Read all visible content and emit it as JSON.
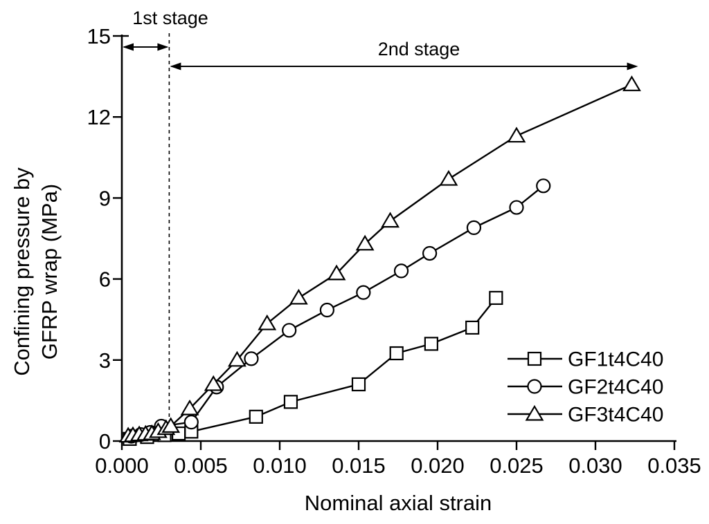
{
  "figure": {
    "background": "#ffffff",
    "ink_color": "#000000"
  },
  "chart_data": {
    "type": "line",
    "title": "",
    "xlabel": "Nominal axial strain",
    "ylabel": "Confining pressure by GFRP wrap (MPa)",
    "ylabel_lines": [
      "Confining pressure by",
      "GFRP wrap (MPa)"
    ],
    "xlim": [
      0,
      0.035
    ],
    "ylim": [
      0,
      15
    ],
    "grid": false,
    "x_ticks": {
      "values": [
        0.0,
        0.005,
        0.01,
        0.015,
        0.02,
        0.025,
        0.03,
        0.035
      ],
      "labels": [
        "0.000",
        "0.005",
        "0.010",
        "0.015",
        "0.020",
        "0.025",
        "0.030",
        "0.035"
      ]
    },
    "y_ticks": {
      "values": [
        0,
        3,
        6,
        9,
        12,
        15
      ],
      "labels": [
        "0",
        "3",
        "6",
        "9",
        "12",
        "15"
      ]
    },
    "legend": {
      "position": "inside-lower-right",
      "entries": [
        "GF1t4C40",
        "GF2t4C40",
        "GF3t4C40"
      ]
    },
    "annotations": {
      "stage1_label": "1st stage",
      "stage2_label": "2nd stage",
      "divider_strain": 0.003,
      "divider_style": "dashed-vertical-line",
      "stage1_range": [
        0,
        0.003
      ],
      "stage2_range": [
        0.003,
        0.0327
      ]
    },
    "series": [
      {
        "name": "GF1t4C40",
        "marker": "square",
        "points": [
          [
            0.0005,
            0.08
          ],
          [
            0.0016,
            0.15
          ],
          [
            0.0027,
            0.22
          ],
          [
            0.0036,
            0.28
          ],
          [
            0.0044,
            0.35
          ],
          [
            0.0085,
            0.9
          ],
          [
            0.0107,
            1.45
          ],
          [
            0.015,
            2.1
          ],
          [
            0.0174,
            3.25
          ],
          [
            0.0196,
            3.6
          ],
          [
            0.0222,
            4.2
          ],
          [
            0.0237,
            5.3
          ]
        ]
      },
      {
        "name": "GF2t4C40",
        "marker": "circle",
        "points": [
          [
            0.0006,
            0.18
          ],
          [
            0.0012,
            0.24
          ],
          [
            0.0018,
            0.32
          ],
          [
            0.0025,
            0.55
          ],
          [
            0.0044,
            0.7
          ],
          [
            0.006,
            2.0
          ],
          [
            0.0082,
            3.05
          ],
          [
            0.0106,
            4.1
          ],
          [
            0.013,
            4.85
          ],
          [
            0.0153,
            5.5
          ],
          [
            0.0177,
            6.3
          ],
          [
            0.0195,
            6.95
          ],
          [
            0.0223,
            7.9
          ],
          [
            0.025,
            8.65
          ],
          [
            0.0267,
            9.45
          ]
        ]
      },
      {
        "name": "GF3t4C40",
        "marker": "triangle",
        "points": [
          [
            0.0004,
            0.19
          ],
          [
            0.0007,
            0.21
          ],
          [
            0.0011,
            0.24
          ],
          [
            0.0015,
            0.26
          ],
          [
            0.0019,
            0.28
          ],
          [
            0.0023,
            0.36
          ],
          [
            0.0028,
            0.47
          ],
          [
            0.0031,
            0.55
          ],
          [
            0.0043,
            1.2
          ],
          [
            0.0058,
            2.1
          ],
          [
            0.0073,
            3.0
          ],
          [
            0.0092,
            4.35
          ],
          [
            0.0112,
            5.3
          ],
          [
            0.0136,
            6.2
          ],
          [
            0.0154,
            7.3
          ],
          [
            0.017,
            8.15
          ],
          [
            0.0207,
            9.7
          ],
          [
            0.025,
            11.3
          ],
          [
            0.0323,
            13.2
          ]
        ]
      }
    ]
  }
}
